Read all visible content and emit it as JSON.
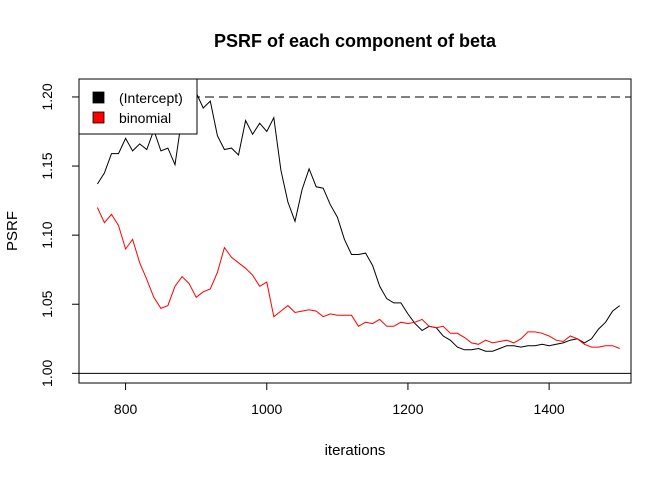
{
  "chart_data": {
    "type": "line",
    "title": "PSRF of each component of beta",
    "xlabel": "iterations",
    "ylabel": "PSRF",
    "xlim": [
      734,
      1516
    ],
    "ylim": [
      0.993,
      1.213
    ],
    "xticks": [
      800,
      1000,
      1200,
      1400
    ],
    "yticks": [
      1.0,
      1.05,
      1.1,
      1.15,
      1.2
    ],
    "ytick_labels": [
      "1.00",
      "1.05",
      "1.10",
      "1.15",
      "1.20"
    ],
    "reference_lines": [
      {
        "y": 1.2,
        "style": "dashed"
      },
      {
        "y": 1.0,
        "style": "solid"
      }
    ],
    "legend_position": "top-left",
    "x": [
      760,
      770,
      780,
      790,
      800,
      810,
      820,
      830,
      840,
      850,
      860,
      870,
      880,
      890,
      900,
      910,
      920,
      930,
      940,
      950,
      960,
      970,
      980,
      990,
      1000,
      1010,
      1020,
      1030,
      1040,
      1050,
      1060,
      1070,
      1080,
      1090,
      1100,
      1110,
      1120,
      1130,
      1140,
      1150,
      1160,
      1170,
      1180,
      1190,
      1200,
      1210,
      1220,
      1230,
      1240,
      1250,
      1260,
      1270,
      1280,
      1290,
      1300,
      1310,
      1320,
      1330,
      1340,
      1350,
      1360,
      1370,
      1380,
      1390,
      1400,
      1410,
      1420,
      1430,
      1440,
      1450,
      1460,
      1470,
      1480,
      1490,
      1500
    ],
    "series": [
      {
        "name": "(Intercept)",
        "color": "#000000",
        "values": [
          1.137,
          1.145,
          1.159,
          1.159,
          1.17,
          1.161,
          1.166,
          1.162,
          1.176,
          1.161,
          1.163,
          1.151,
          1.186,
          1.201,
          1.203,
          1.192,
          1.197,
          1.172,
          1.162,
          1.163,
          1.158,
          1.183,
          1.173,
          1.181,
          1.175,
          1.185,
          1.147,
          1.124,
          1.11,
          1.133,
          1.148,
          1.135,
          1.134,
          1.122,
          1.113,
          1.097,
          1.086,
          1.086,
          1.087,
          1.078,
          1.063,
          1.054,
          1.051,
          1.051,
          1.043,
          1.036,
          1.031,
          1.034,
          1.033,
          1.027,
          1.024,
          1.019,
          1.017,
          1.017,
          1.018,
          1.016,
          1.016,
          1.018,
          1.02,
          1.02,
          1.019,
          1.02,
          1.02,
          1.021,
          1.02,
          1.021,
          1.022,
          1.024,
          1.025,
          1.022,
          1.025,
          1.032,
          1.037,
          1.045,
          1.049
        ]
      },
      {
        "name": "binomial",
        "color": "#ff0000",
        "values": [
          1.12,
          1.109,
          1.115,
          1.107,
          1.09,
          1.097,
          1.08,
          1.068,
          1.055,
          1.047,
          1.049,
          1.063,
          1.07,
          1.065,
          1.055,
          1.059,
          1.061,
          1.073,
          1.091,
          1.084,
          1.08,
          1.076,
          1.071,
          1.063,
          1.066,
          1.041,
          1.045,
          1.049,
          1.044,
          1.045,
          1.046,
          1.045,
          1.041,
          1.043,
          1.042,
          1.042,
          1.042,
          1.034,
          1.037,
          1.036,
          1.039,
          1.034,
          1.034,
          1.037,
          1.036,
          1.037,
          1.039,
          1.034,
          1.033,
          1.034,
          1.029,
          1.029,
          1.026,
          1.022,
          1.021,
          1.024,
          1.022,
          1.023,
          1.024,
          1.022,
          1.025,
          1.03,
          1.03,
          1.029,
          1.027,
          1.024,
          1.023,
          1.027,
          1.025,
          1.021,
          1.019,
          1.019,
          1.02,
          1.02,
          1.018
        ]
      }
    ]
  }
}
